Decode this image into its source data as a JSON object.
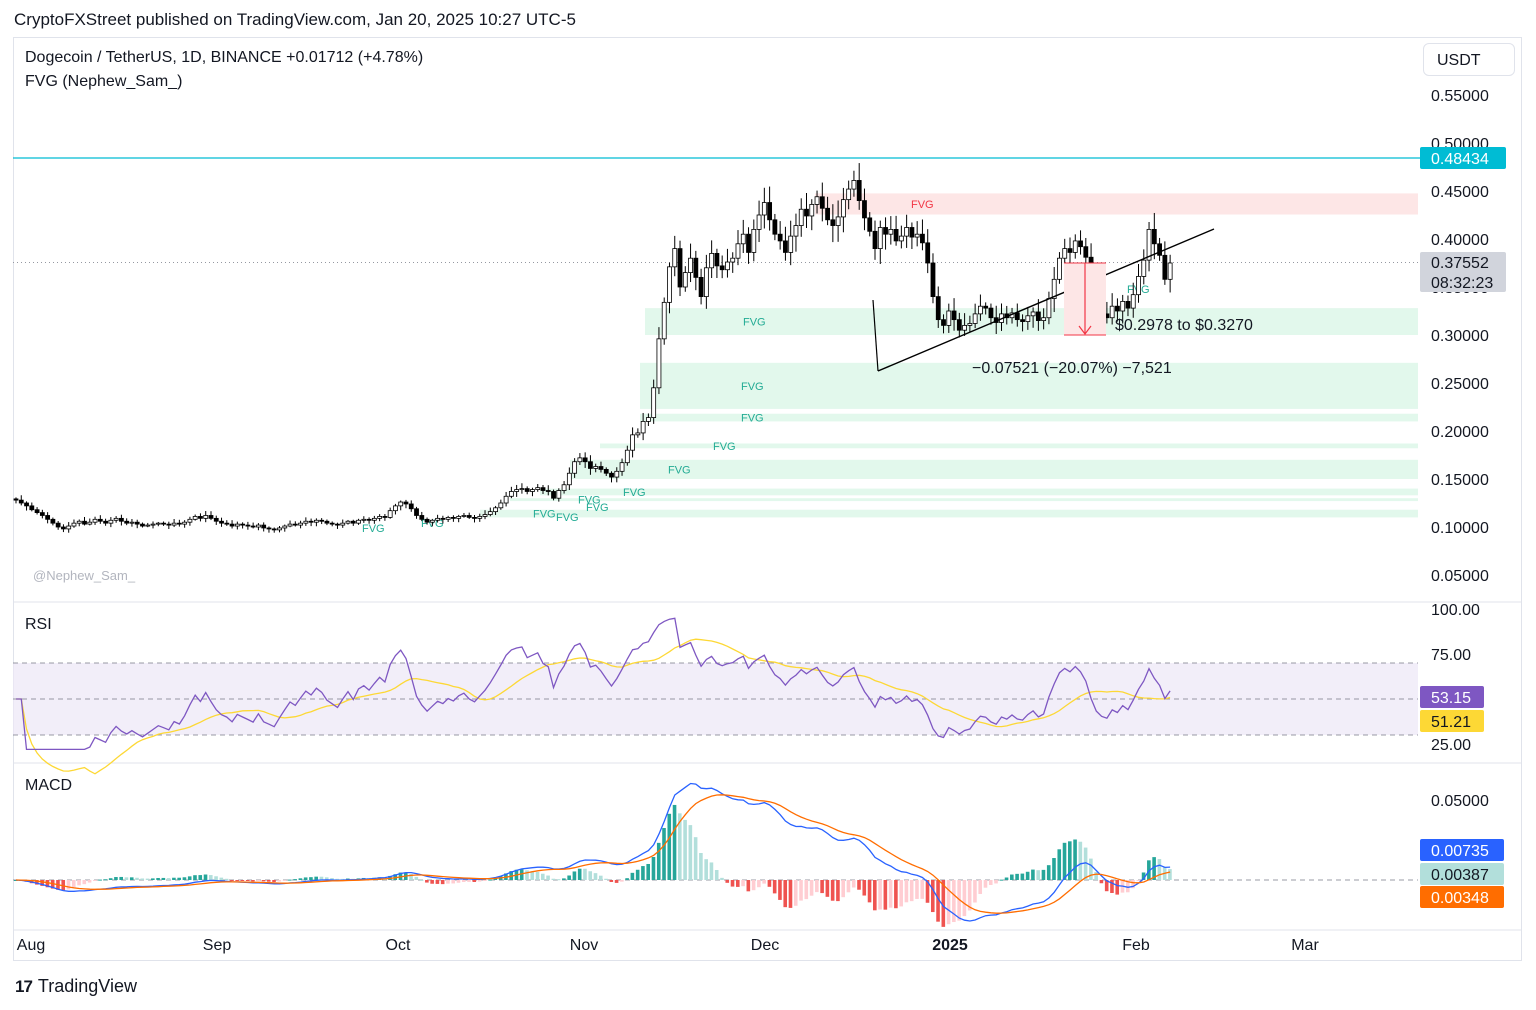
{
  "publisher": "CryptoFXStreet published on TradingView.com, Jan 20, 2025 10:27 UTC-5",
  "legend": {
    "main": "Dogecoin / TetherUS, 1D, BINANCE  +0.01712 (+4.78%)",
    "indicator": "FVG (Nephew_Sam_)",
    "rsi": "RSI",
    "macd": "MACD"
  },
  "currency_button": "USDT",
  "watermark": "@Nephew_Sam_",
  "footer": {
    "brand": "TradingView",
    "logo_glyph": "17"
  },
  "colors": {
    "up": "#ffffff",
    "down": "#000000",
    "resistance": "#00bcd4",
    "fvg_bull": "#e2f8ec",
    "fvg_bear": "#fde6e6",
    "rsi_line": "#7e57c2",
    "rsi_ma": "#fdd835",
    "macd_line": "#2962ff",
    "signal_line": "#ff6d00",
    "hist_pos": "#26a69a",
    "hist_neg": "#ef5350"
  },
  "chart_data": [
    {
      "type": "candlestick",
      "title": "Dogecoin / TetherUS, 1D, BINANCE",
      "change": "+0.01712 (+4.78%)",
      "x_ticks": [
        "Aug",
        "Sep",
        "Oct",
        "Nov",
        "Dec",
        "2025",
        "Feb",
        "Mar"
      ],
      "y_ticks": [
        "0.55000",
        "0.50000",
        "0.45000",
        "0.40000",
        "0.35000",
        "0.30000",
        "0.25000",
        "0.20000",
        "0.15000",
        "0.10000",
        "0.05000"
      ],
      "ylim": [
        0.03,
        0.56
      ],
      "price_labels": {
        "resistance": "0.48434",
        "last": "0.37552",
        "countdown": "08:32:23"
      },
      "resistance_level": 0.48434,
      "last_price": 0.37552,
      "fvg_label": "FVG",
      "fvg_zones": [
        {
          "type": "bear",
          "from": 0.4255,
          "to": 0.4475,
          "label": "FVG"
        },
        {
          "type": "bull",
          "from": 0.3,
          "to": 0.328,
          "label": "FVG"
        },
        {
          "type": "bull",
          "from": 0.223,
          "to": 0.271,
          "label": "FVG"
        },
        {
          "type": "bull",
          "from": 0.21,
          "to": 0.218,
          "label": "FVG"
        },
        {
          "type": "bull",
          "from": 0.182,
          "to": 0.187,
          "label": "FVG"
        },
        {
          "type": "bull",
          "from": 0.15,
          "to": 0.17,
          "label": "FVG"
        },
        {
          "type": "bull",
          "from": 0.133,
          "to": 0.14,
          "label": "FVG"
        },
        {
          "type": "bull",
          "from": 0.127,
          "to": 0.13,
          "label": "FVG"
        },
        {
          "type": "bull",
          "from": 0.11,
          "to": 0.118,
          "label": "FVG"
        }
      ],
      "annotations": {
        "range_target": "$0.2978 to $0.3270",
        "measure": "−0.07521 (−20.07%) −7,521"
      },
      "candles_close": [
        0.128,
        0.125,
        0.122,
        0.118,
        0.115,
        0.112,
        0.108,
        0.104,
        0.1,
        0.098,
        0.101,
        0.104,
        0.106,
        0.103,
        0.105,
        0.108,
        0.106,
        0.104,
        0.107,
        0.109,
        0.106,
        0.104,
        0.105,
        0.103,
        0.101,
        0.102,
        0.103,
        0.104,
        0.103,
        0.102,
        0.104,
        0.103,
        0.105,
        0.108,
        0.111,
        0.109,
        0.112,
        0.109,
        0.106,
        0.104,
        0.103,
        0.101,
        0.103,
        0.102,
        0.101,
        0.1,
        0.102,
        0.099,
        0.098,
        0.097,
        0.099,
        0.101,
        0.103,
        0.102,
        0.104,
        0.106,
        0.105,
        0.107,
        0.106,
        0.104,
        0.103,
        0.102,
        0.104,
        0.106,
        0.104,
        0.107,
        0.108,
        0.107,
        0.109,
        0.111,
        0.11,
        0.117,
        0.122,
        0.126,
        0.124,
        0.119,
        0.112,
        0.108,
        0.105,
        0.107,
        0.109,
        0.108,
        0.11,
        0.109,
        0.111,
        0.112,
        0.11,
        0.109,
        0.111,
        0.113,
        0.116,
        0.12,
        0.125,
        0.132,
        0.137,
        0.139,
        0.14,
        0.137,
        0.139,
        0.141,
        0.138,
        0.137,
        0.13,
        0.138,
        0.144,
        0.156,
        0.168,
        0.172,
        0.168,
        0.161,
        0.163,
        0.16,
        0.156,
        0.152,
        0.158,
        0.167,
        0.18,
        0.196,
        0.198,
        0.21,
        0.214,
        0.245,
        0.296,
        0.334,
        0.371,
        0.39,
        0.35,
        0.365,
        0.38,
        0.36,
        0.34,
        0.37,
        0.385,
        0.372,
        0.368,
        0.376,
        0.38,
        0.395,
        0.405,
        0.386,
        0.41,
        0.425,
        0.438,
        0.42,
        0.405,
        0.398,
        0.386,
        0.403,
        0.414,
        0.431,
        0.424,
        0.436,
        0.444,
        0.432,
        0.42,
        0.414,
        0.423,
        0.441,
        0.452,
        0.461,
        0.44,
        0.422,
        0.408,
        0.39,
        0.412,
        0.405,
        0.41,
        0.398,
        0.403,
        0.412,
        0.402,
        0.405,
        0.396,
        0.375,
        0.34,
        0.316,
        0.31,
        0.325,
        0.316,
        0.305,
        0.31,
        0.312,
        0.322,
        0.33,
        0.328,
        0.318,
        0.313,
        0.322,
        0.318,
        0.323,
        0.316,
        0.314,
        0.32,
        0.324,
        0.315,
        0.318,
        0.338,
        0.358,
        0.38,
        0.39,
        0.386,
        0.398,
        0.392,
        0.381,
        0.356,
        0.333,
        0.322,
        0.318,
        0.33,
        0.325,
        0.335,
        0.328,
        0.342,
        0.361,
        0.378,
        0.41,
        0.395,
        0.383,
        0.358,
        0.375
      ]
    },
    {
      "type": "line",
      "title": "RSI",
      "y_ticks": [
        "100.00",
        "75.00",
        "25.00"
      ],
      "ylim": [
        20,
        100
      ],
      "bands": [
        30,
        50,
        70
      ],
      "series": [
        {
          "name": "",
          "role": "rsi",
          "last_label": "53.15"
        },
        {
          "name": "",
          "role": "rsi_ma",
          "last_label": "51.21"
        }
      ]
    },
    {
      "type": "bar",
      "title": "MACD",
      "y_ticks": [
        "0.05000"
      ],
      "ylim": [
        -0.016,
        0.068
      ],
      "last_labels": {
        "macd": "0.00735",
        "histogram": "0.00387",
        "signal": "0.00348"
      }
    }
  ]
}
